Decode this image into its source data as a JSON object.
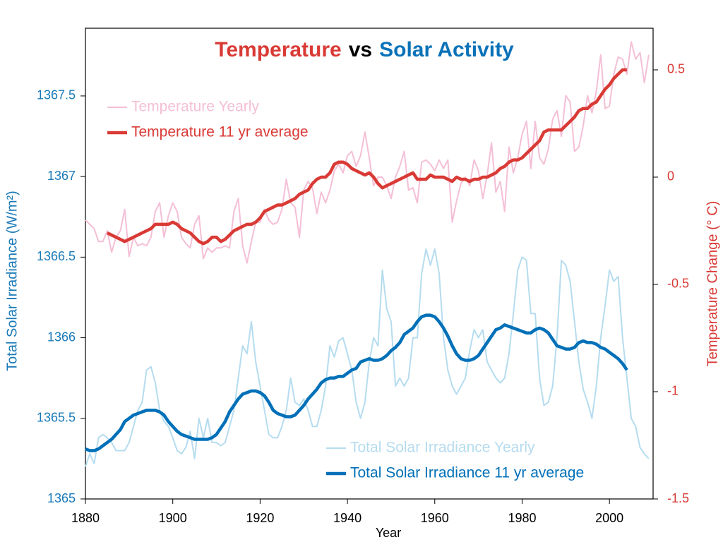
{
  "chart_data": {
    "type": "line",
    "title": [
      "Temperature",
      "vs",
      "Solar Activity"
    ],
    "title_colors": [
      "#d93a35",
      "#000000",
      "#0a72b8"
    ],
    "xlabel": "Year",
    "ylabel": "Total Solar Irradiance (W/m²)",
    "y2label": "Temperature Change (° C)",
    "ylabel_color": "#1a7ab8",
    "y2label_color": "#d93a35",
    "xlim": [
      1880,
      2010
    ],
    "xticks": [
      1880,
      1900,
      1920,
      1940,
      1960,
      1980,
      2000
    ],
    "ylim": [
      1365,
      1367.92
    ],
    "yticks": [
      1365,
      1365.5,
      1366,
      1366.5,
      1367,
      1367.5
    ],
    "y2lim": [
      -1.5,
      0.694
    ],
    "y2ticks": [
      0.5,
      0,
      -0.5,
      -1,
      -1.5
    ],
    "legend_loc": {
      "y2": "upper left",
      "y": "lower right"
    },
    "x": [
      1880,
      1881,
      1882,
      1883,
      1884,
      1885,
      1886,
      1887,
      1888,
      1889,
      1890,
      1891,
      1892,
      1893,
      1894,
      1895,
      1896,
      1897,
      1898,
      1899,
      1900,
      1901,
      1902,
      1903,
      1904,
      1905,
      1906,
      1907,
      1908,
      1909,
      1910,
      1911,
      1912,
      1913,
      1914,
      1915,
      1916,
      1917,
      1918,
      1919,
      1920,
      1921,
      1922,
      1923,
      1924,
      1925,
      1926,
      1927,
      1928,
      1929,
      1930,
      1931,
      1932,
      1933,
      1934,
      1935,
      1936,
      1937,
      1938,
      1939,
      1940,
      1941,
      1942,
      1943,
      1944,
      1945,
      1946,
      1947,
      1948,
      1949,
      1950,
      1951,
      1952,
      1953,
      1954,
      1955,
      1956,
      1957,
      1958,
      1959,
      1960,
      1961,
      1962,
      1963,
      1964,
      1965,
      1966,
      1967,
      1968,
      1969,
      1970,
      1971,
      1972,
      1973,
      1974,
      1975,
      1976,
      1977,
      1978,
      1979,
      1980,
      1981,
      1982,
      1983,
      1984,
      1985,
      1986,
      1987,
      1988,
      1989,
      1990,
      1991,
      1992,
      1993,
      1994,
      1995,
      1996,
      1997,
      1998,
      1999,
      2000,
      2001,
      2002,
      2003,
      2004,
      2005,
      2006,
      2007,
      2008,
      2009
    ],
    "series": [
      {
        "name": "Temperature Yearly",
        "color": "#f4bfd6",
        "axis": "y2",
        "linewidth": 2,
        "values": [
          -0.2,
          -0.22,
          -0.24,
          -0.3,
          -0.3,
          -0.25,
          -0.35,
          -0.28,
          -0.25,
          -0.15,
          -0.37,
          -0.28,
          -0.32,
          -0.31,
          -0.32,
          -0.28,
          -0.16,
          -0.12,
          -0.28,
          -0.18,
          -0.12,
          -0.16,
          -0.28,
          -0.31,
          -0.33,
          -0.22,
          -0.18,
          -0.38,
          -0.33,
          -0.35,
          -0.33,
          -0.33,
          -0.32,
          -0.33,
          -0.16,
          -0.1,
          -0.32,
          -0.4,
          -0.3,
          -0.21,
          -0.21,
          -0.15,
          -0.2,
          -0.22,
          -0.21,
          -0.15,
          -0.01,
          -0.12,
          -0.14,
          -0.28,
          -0.06,
          -0.02,
          -0.05,
          -0.17,
          -0.07,
          -0.12,
          -0.06,
          0.03,
          0.06,
          0.02,
          0.1,
          0.12,
          0.05,
          0.1,
          0.21,
          0.09,
          -0.04,
          0.0,
          0.0,
          -0.04,
          -0.1,
          0.0,
          0.05,
          0.12,
          -0.06,
          -0.05,
          -0.12,
          0.07,
          0.08,
          0.06,
          0.03,
          0.08,
          0.04,
          0.08,
          -0.21,
          -0.11,
          -0.03,
          0.0,
          -0.04,
          0.08,
          0.03,
          -0.1,
          0.01,
          0.16,
          -0.07,
          -0.02,
          -0.16,
          0.14,
          0.02,
          0.09,
          0.2,
          0.26,
          0.04,
          0.26,
          0.09,
          0.06,
          0.13,
          0.27,
          0.31,
          0.19,
          0.38,
          0.35,
          0.12,
          0.14,
          0.24,
          0.38,
          0.3,
          0.4,
          0.57,
          0.32,
          0.33,
          0.48,
          0.56,
          0.55,
          0.48,
          0.63,
          0.55,
          0.58,
          0.44,
          0.57
        ]
      },
      {
        "name": "Temperature 11 yr average",
        "color": "#d93a35",
        "axis": "y2",
        "linewidth": 4.5,
        "values": [
          null,
          null,
          null,
          null,
          null,
          -0.26,
          -0.27,
          -0.28,
          -0.29,
          -0.3,
          -0.29,
          -0.28,
          -0.27,
          -0.26,
          -0.25,
          -0.24,
          -0.22,
          -0.22,
          -0.22,
          -0.22,
          -0.21,
          -0.22,
          -0.24,
          -0.25,
          -0.26,
          -0.28,
          -0.3,
          -0.31,
          -0.3,
          -0.28,
          -0.28,
          -0.3,
          -0.29,
          -0.27,
          -0.25,
          -0.24,
          -0.23,
          -0.22,
          -0.22,
          -0.21,
          -0.19,
          -0.16,
          -0.15,
          -0.14,
          -0.13,
          -0.13,
          -0.12,
          -0.11,
          -0.1,
          -0.08,
          -0.07,
          -0.06,
          -0.03,
          -0.01,
          0.0,
          0.0,
          0.02,
          0.06,
          0.07,
          0.07,
          0.06,
          0.04,
          0.03,
          0.02,
          0.01,
          0.02,
          0.0,
          -0.03,
          -0.05,
          -0.04,
          -0.03,
          -0.02,
          -0.01,
          0.0,
          0.01,
          0.02,
          -0.01,
          -0.01,
          -0.01,
          0.01,
          0.0,
          0.0,
          0.0,
          -0.01,
          -0.02,
          0.0,
          -0.01,
          -0.01,
          -0.02,
          -0.01,
          -0.01,
          0.0,
          0.0,
          0.01,
          0.02,
          0.04,
          0.05,
          0.07,
          0.08,
          0.08,
          0.09,
          0.11,
          0.13,
          0.15,
          0.17,
          0.21,
          0.22,
          0.22,
          0.22,
          0.22,
          0.24,
          0.26,
          0.28,
          0.31,
          0.32,
          0.32,
          0.34,
          0.35,
          0.38,
          0.41,
          0.43,
          0.46,
          0.48,
          0.5,
          0.5,
          null,
          null,
          null,
          null,
          null
        ]
      },
      {
        "name": "Total Solar Irradiance Yearly",
        "color": "#b5dcef",
        "axis": "y",
        "linewidth": 2,
        "values": [
          1365.2,
          1365.28,
          1365.22,
          1365.38,
          1365.4,
          1365.38,
          1365.35,
          1365.3,
          1365.3,
          1365.3,
          1365.35,
          1365.45,
          1365.55,
          1365.6,
          1365.8,
          1365.82,
          1365.72,
          1365.55,
          1365.48,
          1365.45,
          1365.38,
          1365.3,
          1365.28,
          1365.32,
          1365.42,
          1365.25,
          1365.5,
          1365.38,
          1365.5,
          1365.35,
          1365.35,
          1365.33,
          1365.35,
          1365.45,
          1365.55,
          1365.75,
          1365.95,
          1365.9,
          1366.1,
          1365.85,
          1365.7,
          1365.55,
          1365.4,
          1365.38,
          1365.38,
          1365.45,
          1365.55,
          1365.75,
          1365.6,
          1365.58,
          1365.62,
          1365.55,
          1365.45,
          1365.45,
          1365.55,
          1365.7,
          1365.95,
          1365.88,
          1365.98,
          1366.0,
          1365.9,
          1365.8,
          1365.6,
          1365.5,
          1365.6,
          1365.85,
          1366.0,
          1365.95,
          1366.42,
          1366.18,
          1366.1,
          1365.7,
          1365.75,
          1365.7,
          1365.75,
          1366.0,
          1366.0,
          1366.4,
          1366.55,
          1366.45,
          1366.55,
          1366.4,
          1366.0,
          1365.8,
          1365.7,
          1365.65,
          1365.7,
          1365.75,
          1365.92,
          1366.05,
          1366.0,
          1366.05,
          1365.85,
          1365.8,
          1365.75,
          1365.72,
          1365.75,
          1365.9,
          1366.15,
          1366.42,
          1366.5,
          1366.48,
          1366.15,
          1366.15,
          1365.75,
          1365.58,
          1365.6,
          1365.7,
          1366.0,
          1366.48,
          1366.45,
          1366.35,
          1366.1,
          1365.85,
          1365.68,
          1365.6,
          1365.5,
          1365.7,
          1366.0,
          1366.2,
          1366.42,
          1366.35,
          1366.38,
          1366.0,
          1365.75,
          1365.5,
          1365.45,
          1365.32,
          1365.28,
          1365.25
        ]
      },
      {
        "name": "Total Solar Irradiance 11 yr average",
        "color": "#0070b8",
        "axis": "y",
        "linewidth": 4.5,
        "values": [
          1365.31,
          1365.3,
          1365.3,
          1365.31,
          1365.33,
          1365.35,
          1365.37,
          1365.4,
          1365.43,
          1365.48,
          1365.5,
          1365.52,
          1365.53,
          1365.54,
          1365.55,
          1365.55,
          1365.55,
          1365.54,
          1365.52,
          1365.48,
          1365.45,
          1365.42,
          1365.4,
          1365.39,
          1365.38,
          1365.37,
          1365.37,
          1365.37,
          1365.37,
          1365.38,
          1365.4,
          1365.44,
          1365.48,
          1365.54,
          1365.58,
          1365.62,
          1365.65,
          1365.66,
          1365.67,
          1365.67,
          1365.66,
          1365.64,
          1365.6,
          1365.55,
          1365.53,
          1365.52,
          1365.51,
          1365.51,
          1365.52,
          1365.55,
          1365.58,
          1365.62,
          1365.65,
          1365.68,
          1365.72,
          1365.74,
          1365.75,
          1365.75,
          1365.76,
          1365.76,
          1365.78,
          1365.8,
          1365.81,
          1365.85,
          1365.86,
          1365.87,
          1365.86,
          1365.86,
          1365.87,
          1365.89,
          1365.92,
          1365.94,
          1365.97,
          1366.02,
          1366.04,
          1366.06,
          1366.1,
          1366.13,
          1366.14,
          1366.14,
          1366.13,
          1366.1,
          1366.06,
          1366.01,
          1365.95,
          1365.9,
          1365.87,
          1365.86,
          1365.86,
          1365.87,
          1365.89,
          1365.93,
          1365.97,
          1366.01,
          1366.05,
          1366.06,
          1366.08,
          1366.07,
          1366.06,
          1366.05,
          1366.04,
          1366.03,
          1366.03,
          1366.05,
          1366.06,
          1366.05,
          1366.03,
          1365.99,
          1365.95,
          1365.94,
          1365.93,
          1365.93,
          1365.94,
          1365.97,
          1365.98,
          1365.97,
          1365.97,
          1365.96,
          1365.94,
          1365.93,
          1365.91,
          1365.89,
          1365.87,
          1365.84,
          1365.8,
          null,
          null,
          null,
          null,
          null
        ]
      }
    ]
  }
}
